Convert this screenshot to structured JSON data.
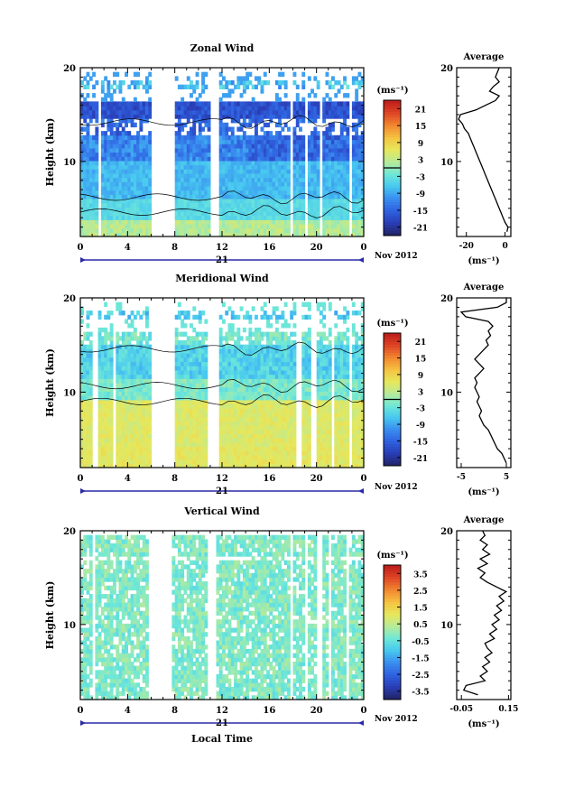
{
  "panels": [
    {
      "title": "Zonal Wind",
      "ylabel": "Height (km)",
      "yticks": [
        10,
        20
      ],
      "ylim": [
        2,
        20
      ],
      "xticks": [
        "0",
        "4",
        "8",
        "12",
        "16",
        "20",
        "0"
      ],
      "day_label": "21",
      "date_label": "Nov 2012",
      "unit_label": "(ms⁻¹)",
      "colorbar_ticks": [
        "21",
        "15",
        "9",
        "3",
        "-3",
        "-9",
        "-15",
        "-21"
      ],
      "colorbar_zero_line": true,
      "avg": {
        "title": "Average",
        "xlabel": "(ms⁻¹)",
        "xticks": [
          "-20",
          "0"
        ],
        "xlim": [
          -25,
          3
        ],
        "yticks": [
          "10",
          "20"
        ],
        "profile": [
          [
            2.5,
            1
          ],
          [
            3,
            1.5
          ],
          [
            3.5,
            0
          ],
          [
            4,
            -1
          ],
          [
            4.5,
            -2
          ],
          [
            5,
            -3
          ],
          [
            5.5,
            -4
          ],
          [
            6,
            -5
          ],
          [
            6.5,
            -6
          ],
          [
            7,
            -7
          ],
          [
            7.5,
            -8
          ],
          [
            8,
            -9
          ],
          [
            8.5,
            -10
          ],
          [
            9,
            -11
          ],
          [
            9.5,
            -12
          ],
          [
            10,
            -13
          ],
          [
            10.5,
            -14
          ],
          [
            11,
            -15
          ],
          [
            11.5,
            -16
          ],
          [
            12,
            -17
          ],
          [
            12.5,
            -18
          ],
          [
            13,
            -19
          ],
          [
            13.5,
            -21
          ],
          [
            14,
            -22
          ],
          [
            14.5,
            -24
          ],
          [
            15,
            -23
          ],
          [
            15.5,
            -15
          ],
          [
            16,
            -10
          ],
          [
            16.5,
            -5
          ],
          [
            17,
            -3
          ],
          [
            17.5,
            -8
          ],
          [
            18,
            -6
          ],
          [
            18.5,
            -3
          ],
          [
            19,
            -5
          ],
          [
            19.5,
            -4
          ],
          [
            20,
            -3
          ]
        ]
      },
      "colormap": "zonal"
    },
    {
      "title": "Meridional Wind",
      "ylabel": "Height (km)",
      "yticks": [
        10,
        20
      ],
      "ylim": [
        2,
        20
      ],
      "xticks": [
        "0",
        "4",
        "8",
        "12",
        "16",
        "20",
        "0"
      ],
      "day_label": "21",
      "date_label": "Nov 2012",
      "unit_label": "(ms⁻¹)",
      "colorbar_ticks": [
        "21",
        "15",
        "9",
        "3",
        "-3",
        "-9",
        "-15",
        "-21"
      ],
      "colorbar_zero_line": true,
      "avg": {
        "title": "Average",
        "xlabel": "(ms⁻¹)",
        "xticks": [
          "-5",
          "5"
        ],
        "xlim": [
          -6,
          6
        ],
        "yticks": [
          "10",
          "20"
        ],
        "profile": [
          [
            2.5,
            5
          ],
          [
            3,
            4.5
          ],
          [
            3.5,
            4
          ],
          [
            4,
            3
          ],
          [
            4.5,
            2.5
          ],
          [
            5,
            2
          ],
          [
            5.5,
            1.5
          ],
          [
            6,
            1
          ],
          [
            6.5,
            0
          ],
          [
            7,
            -0.5
          ],
          [
            7.5,
            -1
          ],
          [
            8,
            -0.5
          ],
          [
            8.5,
            -1
          ],
          [
            9,
            -1.5
          ],
          [
            9.5,
            -1
          ],
          [
            10,
            -1.5
          ],
          [
            10.5,
            -2
          ],
          [
            11,
            -1.5
          ],
          [
            11.5,
            -2
          ],
          [
            12,
            -1
          ],
          [
            12.5,
            0
          ],
          [
            13,
            -1
          ],
          [
            13.5,
            -2
          ],
          [
            14,
            -1
          ],
          [
            14.5,
            0
          ],
          [
            15,
            1
          ],
          [
            15.5,
            0.5
          ],
          [
            16,
            1.5
          ],
          [
            16.5,
            1
          ],
          [
            17,
            2
          ],
          [
            17.5,
            1
          ],
          [
            18,
            -4
          ],
          [
            18.5,
            -5
          ],
          [
            19,
            3
          ],
          [
            19.5,
            5
          ],
          [
            20,
            5
          ]
        ]
      },
      "colormap": "meridional"
    },
    {
      "title": "Vertical Wind",
      "ylabel": "Height (km)",
      "yticks": [
        10,
        20
      ],
      "ylim": [
        2,
        20
      ],
      "xticks": [
        "0",
        "4",
        "8",
        "12",
        "16",
        "20",
        "0"
      ],
      "day_label": "21",
      "date_label": "Nov 2012",
      "unit_label": "(ms⁻¹)",
      "colorbar_ticks": [
        "3.5",
        "2.5",
        "1.5",
        "0.5",
        "-0.5",
        "-1.5",
        "-2.5",
        "-3.5"
      ],
      "colorbar_zero_line": false,
      "avg": {
        "title": "Average",
        "xlabel": "(ms⁻¹)",
        "xticks": [
          "-0.05",
          "0.15"
        ],
        "xlim": [
          -0.07,
          0.16
        ],
        "yticks": [
          "10",
          "20"
        ],
        "profile": [
          [
            2.5,
            0.02
          ],
          [
            3,
            -0.04
          ],
          [
            3.5,
            -0.03
          ],
          [
            4,
            0.05
          ],
          [
            4.5,
            0.03
          ],
          [
            5,
            0.06
          ],
          [
            5.5,
            0.04
          ],
          [
            6,
            0.07
          ],
          [
            6.5,
            0.05
          ],
          [
            7,
            0.08
          ],
          [
            7.5,
            0.06
          ],
          [
            8,
            0.05
          ],
          [
            8.5,
            0.09
          ],
          [
            9,
            0.07
          ],
          [
            9.5,
            0.1
          ],
          [
            10,
            0.08
          ],
          [
            10.5,
            0.11
          ],
          [
            11,
            0.09
          ],
          [
            11.5,
            0.12
          ],
          [
            12,
            0.1
          ],
          [
            12.5,
            0.13
          ],
          [
            13,
            0.11
          ],
          [
            13.5,
            0.14
          ],
          [
            14,
            0.1
          ],
          [
            14.5,
            0.06
          ],
          [
            15,
            0.03
          ],
          [
            15.5,
            0.05
          ],
          [
            16,
            0.02
          ],
          [
            16.5,
            0.06
          ],
          [
            17,
            0.03
          ],
          [
            17.5,
            0.07
          ],
          [
            18,
            0.04
          ],
          [
            18.5,
            0.06
          ],
          [
            19,
            0.03
          ],
          [
            19.5,
            0.05
          ],
          [
            20,
            0.04
          ]
        ]
      },
      "colormap": "vertical"
    }
  ],
  "xlabel": "Local Time",
  "chart_data": [
    {
      "type": "heatmap",
      "title": "Zonal Wind",
      "xlabel": "",
      "ylabel": "Height (km)",
      "x_range_hours": [
        0,
        24
      ],
      "y_range_km": [
        2,
        20
      ],
      "colorbar_range": [
        -21,
        21
      ],
      "unit": "(ms⁻¹)"
    },
    {
      "type": "line",
      "title": "Average",
      "xlabel": "(ms⁻¹)",
      "ylabel": "",
      "xlim": [
        -25,
        3
      ],
      "ylim": [
        2,
        20
      ]
    },
    {
      "type": "heatmap",
      "title": "Meridional Wind",
      "ylabel": "Height (km)",
      "x_range_hours": [
        0,
        24
      ],
      "y_range_km": [
        2,
        20
      ],
      "colorbar_range": [
        -21,
        21
      ],
      "unit": "(ms⁻¹)"
    },
    {
      "type": "line",
      "title": "Average",
      "xlabel": "(ms⁻¹)",
      "xlim": [
        -6,
        6
      ],
      "ylim": [
        2,
        20
      ]
    },
    {
      "type": "heatmap",
      "title": "Vertical Wind",
      "xlabel": "Local Time",
      "ylabel": "Height (km)",
      "x_range_hours": [
        0,
        24
      ],
      "y_range_km": [
        2,
        20
      ],
      "colorbar_range": [
        -3.5,
        3.5
      ],
      "unit": "(ms⁻¹)"
    },
    {
      "type": "line",
      "title": "Average",
      "xlabel": "(ms⁻¹)",
      "xlim": [
        -0.07,
        0.16
      ],
      "ylim": [
        2,
        20
      ]
    }
  ]
}
